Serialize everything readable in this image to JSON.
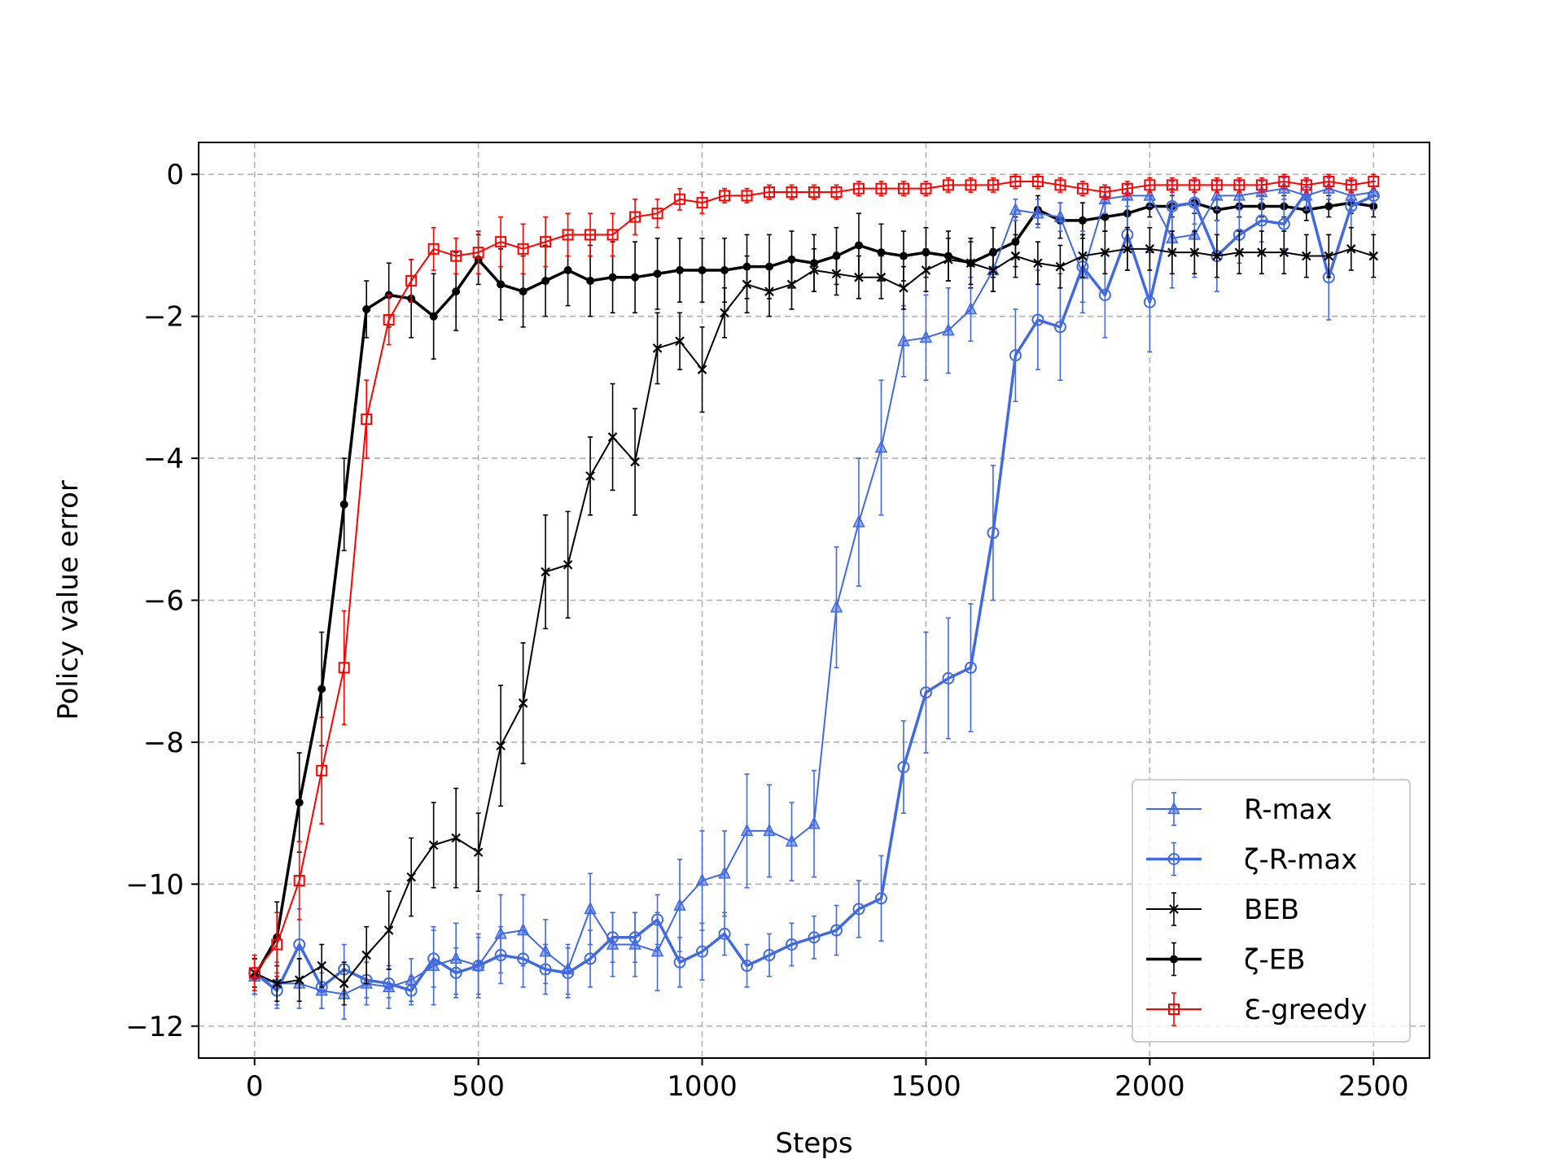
{
  "chart_data": {
    "type": "line",
    "title": "",
    "xlabel": "Steps",
    "ylabel": "Policy value error",
    "xlim": [
      -125,
      2625
    ],
    "ylim": [
      -12.45,
      0.45
    ],
    "xticks": [
      0,
      500,
      1000,
      1500,
      2000,
      2500
    ],
    "xtick_labels": [
      "0",
      "500",
      "1000",
      "1500",
      "2000",
      "2500"
    ],
    "yticks": [
      0,
      -2,
      -4,
      -6,
      -8,
      -10,
      -12
    ],
    "ytick_labels": [
      "0",
      "−2",
      "−4",
      "−6",
      "−8",
      "−10",
      "−12"
    ],
    "grid": true,
    "legend_position": "lower-right",
    "x": [
      0,
      50,
      100,
      150,
      200,
      250,
      300,
      350,
      400,
      450,
      500,
      550,
      600,
      650,
      700,
      750,
      800,
      850,
      900,
      950,
      1000,
      1050,
      1100,
      1150,
      1200,
      1250,
      1300,
      1350,
      1400,
      1450,
      1500,
      1550,
      1600,
      1650,
      1700,
      1750,
      1800,
      1850,
      1900,
      1950,
      2000,
      2050,
      2100,
      2150,
      2200,
      2250,
      2300,
      2350,
      2400,
      2450,
      2500
    ],
    "series": [
      {
        "name": "R-max",
        "color": "#4169E1",
        "marker": "triangle",
        "linewidth": 2,
        "values": [
          -11.3,
          -11.4,
          -11.4,
          -11.5,
          -11.55,
          -11.4,
          -11.45,
          -11.35,
          -11.15,
          -11.05,
          -11.15,
          -10.7,
          -10.65,
          -10.95,
          -11.2,
          -10.35,
          -10.85,
          -10.85,
          -10.95,
          -10.3,
          -9.95,
          -9.85,
          -9.25,
          -9.25,
          -9.4,
          -9.15,
          -6.1,
          -4.9,
          -3.85,
          -2.35,
          -2.3,
          -2.2,
          -1.9,
          -1.35,
          -0.5,
          -0.55,
          -0.6,
          -1.4,
          -0.35,
          -0.3,
          -0.3,
          -0.9,
          -0.85,
          -0.3,
          -0.3,
          -0.25,
          -0.2,
          -0.3,
          -0.2,
          -0.3,
          -0.25
        ],
        "errors": [
          0.25,
          0.3,
          0.35,
          0.25,
          0.35,
          0.3,
          0.3,
          0.3,
          0.55,
          0.5,
          0.45,
          0.55,
          0.5,
          0.45,
          0.35,
          0.5,
          0.45,
          0.45,
          0.55,
          0.65,
          0.7,
          0.6,
          0.8,
          0.65,
          0.55,
          0.75,
          0.85,
          0.9,
          0.95,
          0.5,
          0.6,
          0.6,
          0.45,
          0.3,
          0.15,
          0.2,
          0.2,
          0.55,
          0.2,
          0.15,
          0.15,
          0.7,
          0.6,
          0.2,
          0.2,
          0.15,
          0.15,
          0.2,
          0.15,
          0.2,
          0.15
        ]
      },
      {
        "name": "ζ-R-max",
        "color": "#4169E1",
        "marker": "circle",
        "linewidth": 3.5,
        "values": [
          -11.25,
          -11.5,
          -10.85,
          -11.45,
          -11.2,
          -11.35,
          -11.4,
          -11.5,
          -11.05,
          -11.25,
          -11.15,
          -11.0,
          -11.05,
          -11.2,
          -11.25,
          -11.05,
          -10.75,
          -10.75,
          -10.5,
          -11.1,
          -10.95,
          -10.7,
          -11.15,
          -11.0,
          -10.85,
          -10.75,
          -10.65,
          -10.35,
          -10.2,
          -8.35,
          -7.3,
          -7.1,
          -6.95,
          -5.05,
          -2.55,
          -2.05,
          -2.15,
          -1.3,
          -1.7,
          -0.85,
          -1.8,
          -0.45,
          -0.4,
          -1.15,
          -0.85,
          -0.65,
          -0.7,
          -0.25,
          -1.45,
          -0.45,
          -0.3
        ],
        "errors": [
          0.2,
          0.25,
          0.5,
          0.3,
          0.35,
          0.25,
          0.2,
          0.2,
          0.4,
          0.35,
          0.4,
          0.4,
          0.4,
          0.35,
          0.35,
          0.4,
          0.35,
          0.35,
          0.35,
          0.35,
          0.4,
          0.3,
          0.3,
          0.3,
          0.3,
          0.3,
          0.35,
          0.4,
          0.6,
          0.65,
          0.85,
          0.85,
          0.9,
          0.95,
          0.65,
          0.7,
          0.75,
          0.5,
          0.6,
          0.5,
          0.7,
          0.35,
          0.3,
          0.5,
          0.4,
          0.3,
          0.35,
          0.2,
          0.6,
          0.3,
          0.2
        ]
      },
      {
        "name": "BEB",
        "color": "#000000",
        "marker": "x",
        "linewidth": 2,
        "values": [
          -11.25,
          -11.4,
          -11.35,
          -11.15,
          -11.4,
          -11.0,
          -10.65,
          -9.9,
          -9.45,
          -9.35,
          -9.55,
          -8.05,
          -7.45,
          -5.6,
          -5.5,
          -4.25,
          -3.7,
          -4.05,
          -2.45,
          -2.35,
          -2.75,
          -1.95,
          -1.55,
          -1.65,
          -1.55,
          -1.35,
          -1.4,
          -1.45,
          -1.45,
          -1.6,
          -1.35,
          -1.2,
          -1.25,
          -1.35,
          -1.15,
          -1.25,
          -1.3,
          -1.15,
          -1.1,
          -1.05,
          -1.05,
          -1.1,
          -1.1,
          -1.15,
          -1.1,
          -1.1,
          -1.1,
          -1.15,
          -1.15,
          -1.05,
          -1.15
        ],
        "errors": [
          0.2,
          0.25,
          0.3,
          0.3,
          0.3,
          0.4,
          0.55,
          0.55,
          0.6,
          0.7,
          0.55,
          0.85,
          0.85,
          0.8,
          0.75,
          0.55,
          0.75,
          0.75,
          0.5,
          0.4,
          0.6,
          0.35,
          0.4,
          0.35,
          0.35,
          0.3,
          0.3,
          0.3,
          0.3,
          0.3,
          0.3,
          0.3,
          0.3,
          0.3,
          0.3,
          0.3,
          0.3,
          0.3,
          0.3,
          0.3,
          0.3,
          0.3,
          0.3,
          0.3,
          0.3,
          0.3,
          0.3,
          0.3,
          0.3,
          0.3,
          0.3
        ]
      },
      {
        "name": "ζ-EB",
        "color": "#000000",
        "marker": "dot",
        "linewidth": 3.5,
        "values": [
          -11.3,
          -10.75,
          -8.85,
          -7.25,
          -4.65,
          -1.9,
          -1.7,
          -1.75,
          -2.0,
          -1.65,
          -1.2,
          -1.55,
          -1.65,
          -1.5,
          -1.35,
          -1.5,
          -1.45,
          -1.45,
          -1.4,
          -1.35,
          -1.35,
          -1.35,
          -1.3,
          -1.3,
          -1.2,
          -1.25,
          -1.15,
          -1.0,
          -1.1,
          -1.15,
          -1.1,
          -1.15,
          -1.25,
          -1.1,
          -0.95,
          -0.5,
          -0.65,
          -0.65,
          -0.6,
          -0.55,
          -0.45,
          -0.45,
          -0.4,
          -0.5,
          -0.45,
          -0.45,
          -0.45,
          -0.5,
          -0.45,
          -0.4,
          -0.45
        ],
        "errors": [
          0.25,
          0.5,
          0.7,
          0.8,
          0.65,
          0.4,
          0.45,
          0.55,
          0.6,
          0.55,
          0.35,
          0.5,
          0.5,
          0.5,
          0.5,
          0.5,
          0.5,
          0.5,
          0.5,
          0.45,
          0.45,
          0.45,
          0.45,
          0.45,
          0.4,
          0.4,
          0.4,
          0.45,
          0.4,
          0.35,
          0.35,
          0.35,
          0.35,
          0.35,
          0.35,
          0.2,
          0.25,
          0.25,
          0.2,
          0.2,
          0.15,
          0.15,
          0.15,
          0.15,
          0.15,
          0.15,
          0.15,
          0.15,
          0.15,
          0.15,
          0.15
        ]
      },
      {
        "name": "Ɛ-greedy",
        "color": "#FF0000",
        "marker": "square",
        "linewidth": 2,
        "values": [
          -11.25,
          -10.85,
          -9.95,
          -8.4,
          -6.95,
          -3.45,
          -2.05,
          -1.5,
          -1.05,
          -1.15,
          -1.1,
          -0.95,
          -1.05,
          -0.95,
          -0.85,
          -0.85,
          -0.85,
          -0.6,
          -0.55,
          -0.35,
          -0.4,
          -0.3,
          -0.3,
          -0.25,
          -0.25,
          -0.25,
          -0.25,
          -0.2,
          -0.2,
          -0.2,
          -0.2,
          -0.15,
          -0.15,
          -0.15,
          -0.1,
          -0.1,
          -0.15,
          -0.2,
          -0.25,
          -0.2,
          -0.15,
          -0.15,
          -0.15,
          -0.15,
          -0.15,
          -0.15,
          -0.1,
          -0.15,
          -0.1,
          -0.15,
          -0.1
        ],
        "errors": [
          0.25,
          0.45,
          0.55,
          0.75,
          0.8,
          0.55,
          0.35,
          0.3,
          0.3,
          0.25,
          0.3,
          0.35,
          0.35,
          0.35,
          0.3,
          0.3,
          0.3,
          0.25,
          0.2,
          0.15,
          0.15,
          0.1,
          0.1,
          0.1,
          0.1,
          0.1,
          0.1,
          0.1,
          0.1,
          0.1,
          0.1,
          0.1,
          0.1,
          0.1,
          0.1,
          0.1,
          0.1,
          0.1,
          0.1,
          0.1,
          0.1,
          0.1,
          0.1,
          0.1,
          0.1,
          0.1,
          0.1,
          0.1,
          0.1,
          0.1,
          0.1
        ]
      }
    ]
  }
}
